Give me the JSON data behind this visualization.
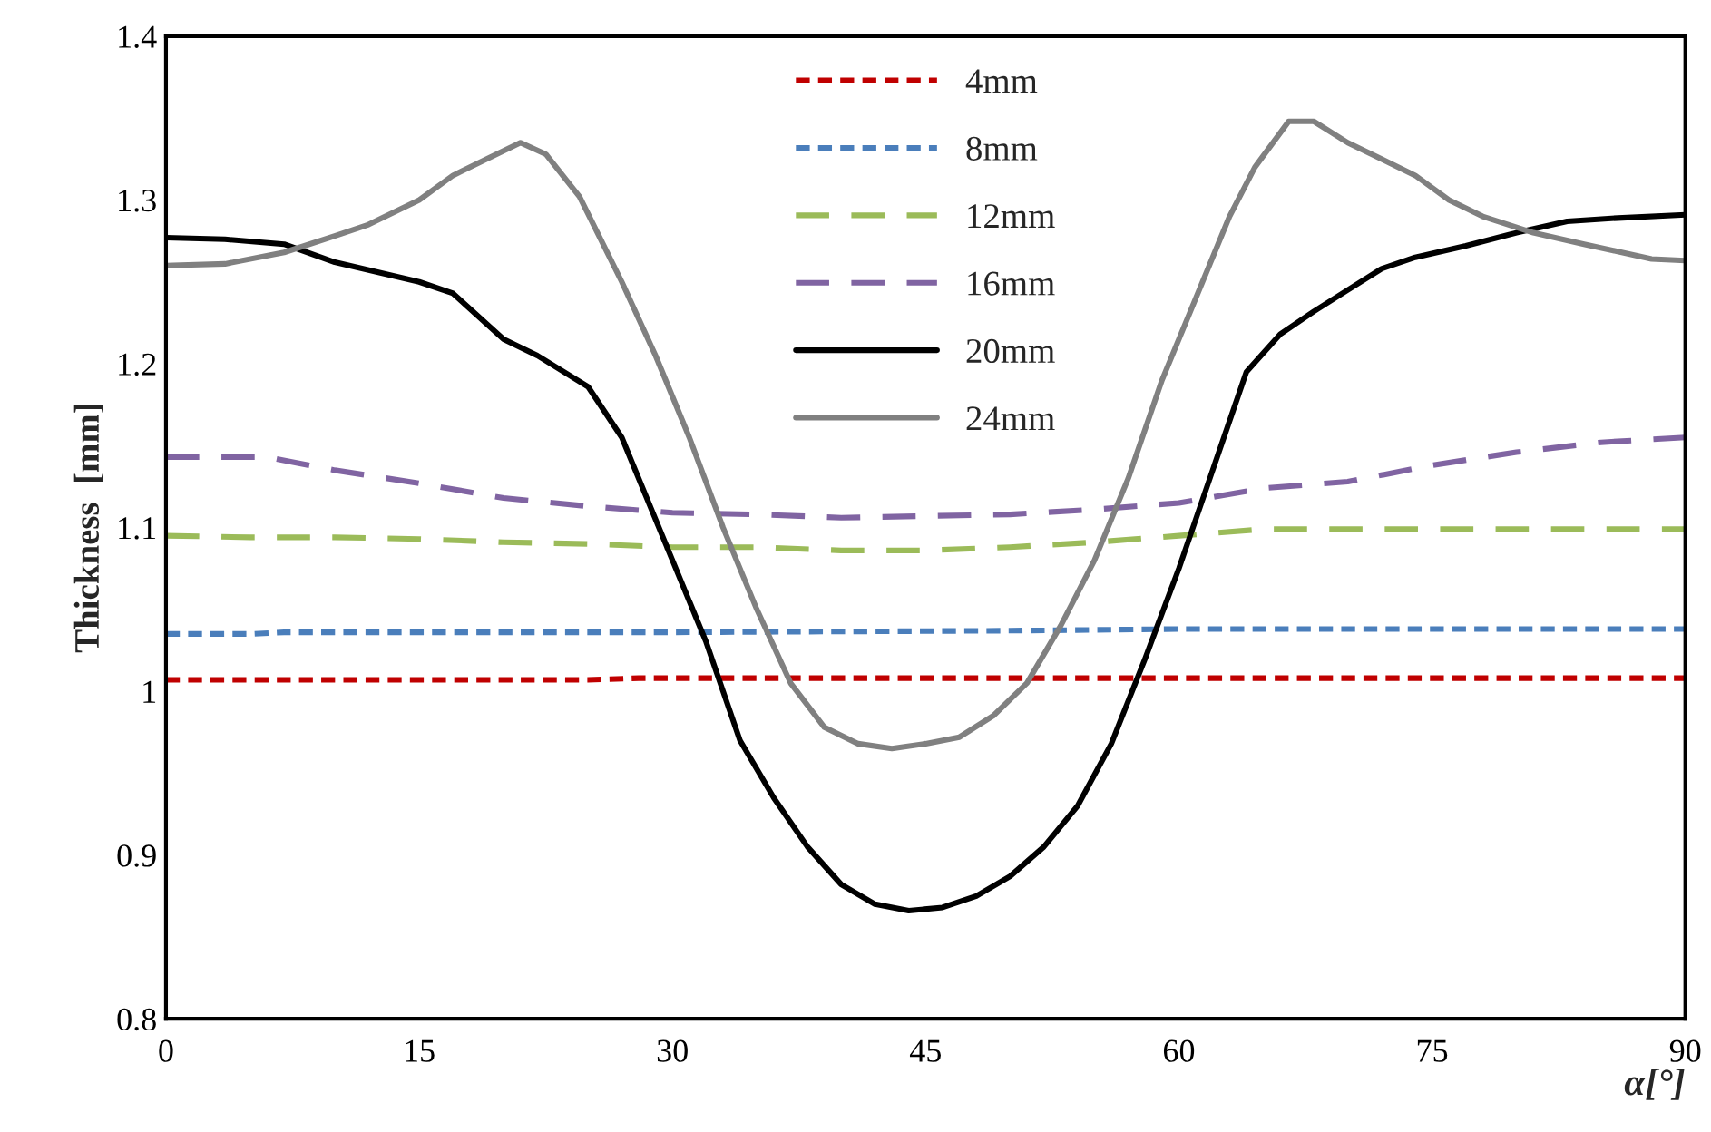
{
  "chart_data": {
    "type": "line",
    "xlabel": "α[°]",
    "ylabel": "Thickness  [mm]",
    "xlim": [
      0,
      90
    ],
    "xticks": [
      0,
      15,
      30,
      45,
      60,
      75,
      90
    ],
    "ylim": [
      0.8,
      1.4
    ],
    "yticks": [
      0.8,
      0.9,
      1,
      1.1,
      1.2,
      1.3,
      1.4
    ],
    "grid": false,
    "legend": "top",
    "marker": "none",
    "series": [
      {
        "name": "4mm",
        "color": "#c00000",
        "line_style": "dotted",
        "x": [
          0,
          25,
          28,
          40,
          60,
          90
        ],
        "values": [
          1.007,
          1.007,
          1.008,
          1.008,
          1.008,
          1.008
        ]
      },
      {
        "name": "8mm",
        "color": "#4a7ebb",
        "line_style": "dotted",
        "x": [
          0,
          5,
          7,
          30,
          50,
          60,
          90
        ],
        "values": [
          1.035,
          1.035,
          1.036,
          1.036,
          1.037,
          1.038,
          1.038
        ]
      },
      {
        "name": "12mm",
        "color": "#9bbb59",
        "line_style": "dashed",
        "x": [
          0,
          5,
          10,
          15,
          20,
          25,
          30,
          35,
          40,
          45,
          50,
          55,
          60,
          65,
          70,
          80,
          90
        ],
        "values": [
          1.095,
          1.094,
          1.094,
          1.093,
          1.091,
          1.09,
          1.088,
          1.088,
          1.086,
          1.086,
          1.088,
          1.091,
          1.095,
          1.099,
          1.099,
          1.099,
          1.099
        ]
      },
      {
        "name": "16mm",
        "color": "#8064a2",
        "line_style": "dashed",
        "x": [
          0,
          6,
          10,
          15,
          20,
          25,
          30,
          35,
          40,
          45,
          50,
          55,
          60,
          65,
          70,
          75,
          80,
          85,
          90
        ],
        "values": [
          1.143,
          1.143,
          1.135,
          1.127,
          1.118,
          1.113,
          1.109,
          1.108,
          1.106,
          1.107,
          1.108,
          1.111,
          1.115,
          1.124,
          1.128,
          1.138,
          1.146,
          1.152,
          1.155
        ]
      },
      {
        "name": "20mm",
        "color": "#000000",
        "line_style": "solid",
        "x": [
          0,
          3.5,
          7,
          10,
          15,
          17,
          20,
          22,
          25,
          27,
          30,
          32,
          34,
          36,
          38,
          40,
          42,
          44,
          46,
          48,
          50,
          52,
          54,
          56,
          58,
          60,
          62,
          64,
          66,
          68,
          70,
          72,
          74,
          77,
          80,
          83,
          86,
          90
        ],
        "values": [
          1.277,
          1.276,
          1.273,
          1.262,
          1.25,
          1.243,
          1.215,
          1.205,
          1.186,
          1.155,
          1.08,
          1.03,
          0.97,
          0.935,
          0.905,
          0.882,
          0.87,
          0.866,
          0.868,
          0.875,
          0.887,
          0.905,
          0.93,
          0.968,
          1.02,
          1.075,
          1.135,
          1.195,
          1.218,
          1.232,
          1.245,
          1.258,
          1.265,
          1.272,
          1.28,
          1.287,
          1.289,
          1.291
        ]
      },
      {
        "name": "24mm",
        "color": "#808080",
        "line_style": "solid",
        "x": [
          0,
          3.5,
          7,
          10,
          12,
          15,
          17,
          19,
          21,
          22.5,
          24.5,
          27,
          29,
          31,
          33,
          35,
          37,
          39,
          41,
          43,
          45,
          47,
          49,
          51,
          53,
          55,
          57,
          59,
          61,
          63,
          64.5,
          66.5,
          68,
          70,
          72,
          74,
          76,
          78,
          81,
          84,
          88,
          90
        ],
        "values": [
          1.26,
          1.261,
          1.268,
          1.278,
          1.285,
          1.3,
          1.315,
          1.325,
          1.335,
          1.328,
          1.302,
          1.25,
          1.205,
          1.155,
          1.1,
          1.05,
          1.005,
          0.978,
          0.968,
          0.965,
          0.968,
          0.972,
          0.985,
          1.005,
          1.04,
          1.08,
          1.13,
          1.19,
          1.24,
          1.29,
          1.32,
          1.348,
          1.348,
          1.335,
          1.325,
          1.315,
          1.3,
          1.29,
          1.28,
          1.273,
          1.264,
          1.263
        ]
      }
    ]
  }
}
